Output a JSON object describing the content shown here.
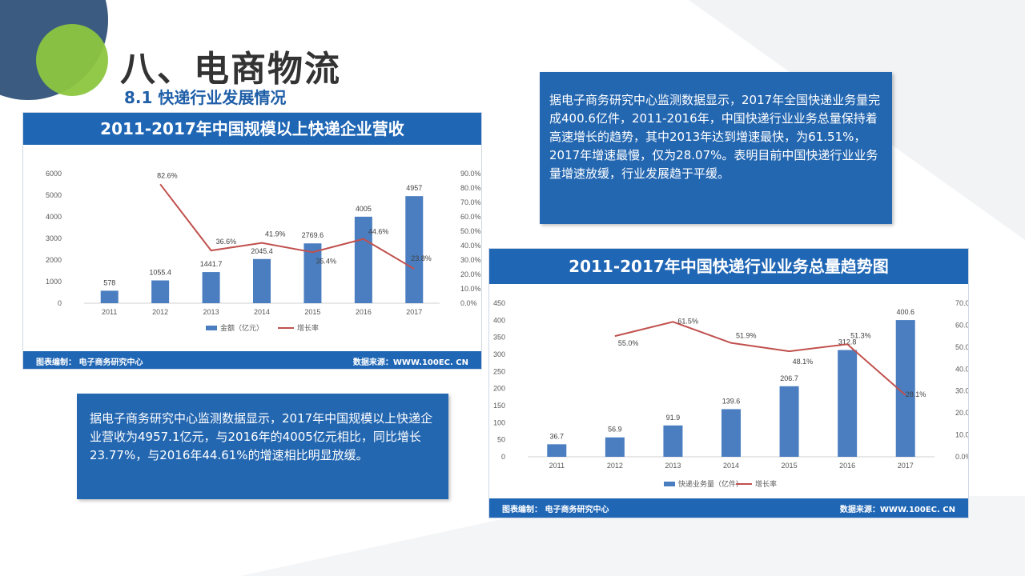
{
  "slide": {
    "title": "八、电商物流",
    "subtitle": "8.1  快递行业发展情况",
    "colors": {
      "accent": "#1f66b5",
      "bar": "#4a7ec0",
      "line": "#c0504d",
      "textbox": "#2467b1"
    }
  },
  "text_boxes": [
    {
      "text": "据电子商务研究中心监测数据显示，2017年中国规模以上快递企业营收为4957.1亿元，与2016年的4005亿元相比，同比增长23.77%，与2016年44.61%的增速相比明显放缓。"
    },
    {
      "text": "据电子商务研究中心监测数据显示，2017年全国快递业务量完成400.6亿件，2011-2016年，中国快递行业业务总量保持着高速增长的趋势，其中2013年达到增速最快，为61.51%，2017年增速最慢，仅为28.07%。表明目前中国快递行业业务量增速放缓，行业发展趋于平缓。"
    }
  ],
  "chart_data": [
    {
      "type": "bar",
      "title": "2011-2017年中国规模以上快递企业营收",
      "categories": [
        "2011",
        "2012",
        "2013",
        "2014",
        "2015",
        "2016",
        "2017"
      ],
      "series": [
        {
          "name": "金额（亿元）",
          "type": "bar",
          "axis": "left",
          "values": [
            578,
            1055.4,
            1441.7,
            2045.4,
            2769.6,
            4005,
            4957
          ],
          "labels": [
            "578",
            "1055.4",
            "1441.7",
            "2045.4",
            "2769.6",
            "4005",
            "4957"
          ]
        },
        {
          "name": "增长率",
          "type": "line",
          "axis": "right",
          "values": [
            null,
            82.6,
            36.6,
            41.9,
            35.4,
            44.6,
            23.8
          ],
          "labels": [
            "",
            "82.6%",
            "36.6%",
            "41.9%",
            "35.4%",
            "44.6%",
            "23.8%"
          ]
        }
      ],
      "ylim": [
        0,
        6000
      ],
      "yticks": [
        "0",
        "1000",
        "2000",
        "3000",
        "4000",
        "5000",
        "6000"
      ],
      "y2lim": [
        0,
        90
      ],
      "y2ticks": [
        "0.0%",
        "10.0%",
        "20.0%",
        "30.0%",
        "40.0%",
        "50.0%",
        "60.0%",
        "70.0%",
        "80.0%",
        "90.0%"
      ],
      "footer_left": "图表编制：  电子商务研究中心",
      "footer_right": "数据来源：WWW.100EC. CN",
      "grid": false,
      "legend": "bottom"
    },
    {
      "type": "bar",
      "title": "2011-2017年中国快递行业业务总量趋势图",
      "categories": [
        "2011",
        "2012",
        "2013",
        "2014",
        "2015",
        "2016",
        "2017"
      ],
      "series": [
        {
          "name": "快递业务量（亿件）",
          "type": "bar",
          "axis": "left",
          "values": [
            36.7,
            56.9,
            91.9,
            139.6,
            206.7,
            312.8,
            400.6
          ],
          "labels": [
            "36.7",
            "56.9",
            "91.9",
            "139.6",
            "206.7",
            "312.8",
            "400.6"
          ]
        },
        {
          "name": "增长率",
          "type": "line",
          "axis": "right",
          "values": [
            null,
            55.0,
            61.5,
            51.9,
            48.1,
            51.3,
            28.1
          ],
          "labels": [
            "",
            "55.0%",
            "61.5%",
            "51.9%",
            "48.1%",
            "51.3%",
            "28.1%"
          ]
        }
      ],
      "ylim": [
        0,
        450
      ],
      "yticks": [
        "0",
        "50",
        "100",
        "150",
        "200",
        "250",
        "300",
        "350",
        "400",
        "450"
      ],
      "y2lim": [
        0,
        70
      ],
      "y2ticks": [
        "0.0%",
        "10.0%",
        "20.0%",
        "30.0%",
        "40.0%",
        "50.0%",
        "60.0%",
        "70.0%"
      ],
      "footer_left": "图表编制：  电子商务研究中心",
      "footer_right": "数据来源：WWW.100EC. CN",
      "grid": false,
      "legend": "bottom"
    }
  ]
}
